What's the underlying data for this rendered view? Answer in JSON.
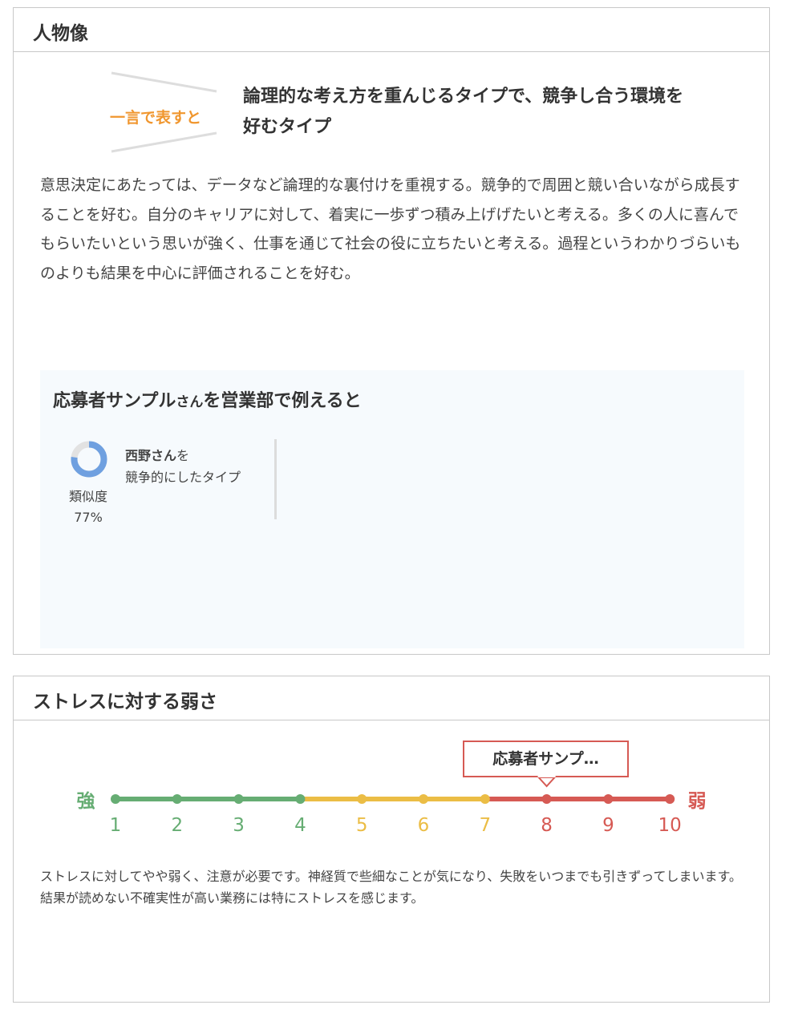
{
  "persona": {
    "title": "人物像",
    "tagline": "一言で表すと",
    "headline": "論理的な考え方を重んじるタイプで、競争し合う環境を好むタイプ",
    "description": "意思決定にあたっては、データなど論理的な裏付けを重視する。競争的で周囲と競い合いながら成長することを好む。自分のキャリアに対して、着実に一歩ずつ積み上げげたいと考える。多くの人に喜んでもらいたいという思いが強く、仕事を通じて社会の役に立ちたいと考える。過程というわかりづらいものよりも結果を中心に評価されることを好む。",
    "example": {
      "title_main": "応募者サンプル",
      "title_san": "さん",
      "title_rest": "を営業部で例えると",
      "similarity_label": "類似度",
      "similarity_value": "77%",
      "similarity_percent": 77,
      "person_name": "西野さん",
      "person_suffix": "を",
      "type_text": "競争的にしたタイプ"
    }
  },
  "stress": {
    "title": "ストレスに対する弱さ",
    "left_label": "強",
    "right_label": "弱",
    "marker_label": "応募者サンプ…",
    "value": 8,
    "ticks": [
      "1",
      "2",
      "3",
      "4",
      "5",
      "6",
      "7",
      "8",
      "9",
      "10"
    ],
    "colors": {
      "green": "#66ad73",
      "yellow": "#ebbd45",
      "red": "#d65a54"
    },
    "description": "ストレスに対してやや弱く、注意が必要です。神経質で些細なことが気になり、失敗をいつまでも引きずってしまいます。結果が読めない不確実性が高い業務には特にストレスを感じます。"
  }
}
